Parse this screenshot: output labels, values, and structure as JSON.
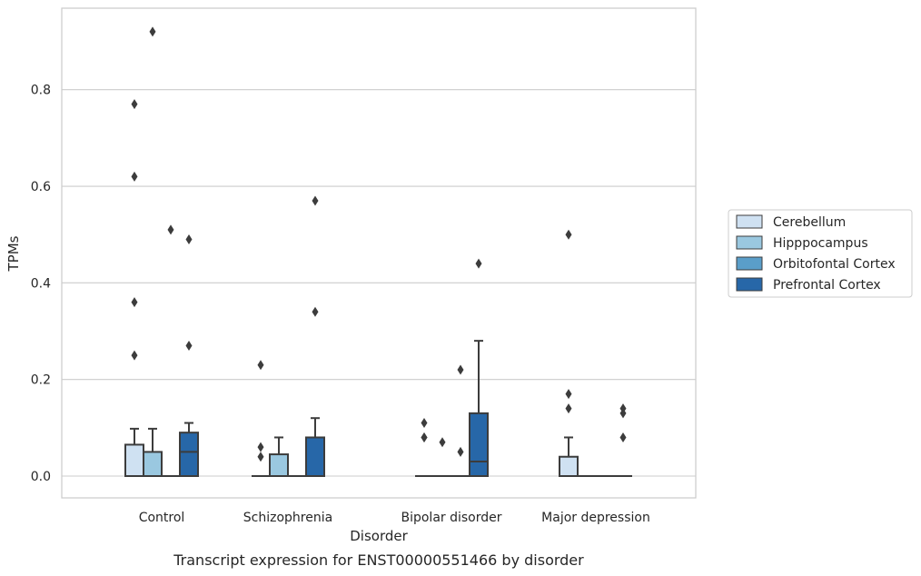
{
  "chart_data": {
    "type": "box",
    "xlabel": "Disorder",
    "ylabel": "TPMs",
    "caption": "Transcript expression for ENST00000551466 by disorder",
    "categories": [
      "Control",
      "Schizophrenia",
      "Bipolar disorder",
      "Major depression"
    ],
    "ylim": [
      -0.045,
      0.97
    ],
    "yticks": [
      0.0,
      0.2,
      0.4,
      0.6,
      0.8
    ],
    "ytick_labels": [
      "0.0",
      "0.2",
      "0.4",
      "0.6",
      "0.8"
    ],
    "grid": "horizontal",
    "legend_position": "right",
    "series": [
      {
        "name": "Cerebellum",
        "color": "#cfe1f2",
        "boxes": [
          {
            "q1": 0.0,
            "median": 0.0,
            "q3": 0.065,
            "whisker_low": 0.0,
            "whisker_high": 0.098,
            "outliers": [
              0.25,
              0.36,
              0.62,
              0.77
            ]
          },
          {
            "q1": 0.0,
            "median": 0.0,
            "q3": 0.0,
            "whisker_low": 0.0,
            "whisker_high": 0.0,
            "outliers": [
              0.04,
              0.06,
              0.23
            ]
          },
          {
            "q1": 0.0,
            "median": 0.0,
            "q3": 0.0,
            "whisker_low": 0.0,
            "whisker_high": 0.0,
            "outliers": [
              0.08,
              0.08,
              0.11
            ]
          },
          {
            "q1": 0.0,
            "median": 0.0,
            "q3": 0.04,
            "whisker_low": 0.0,
            "whisker_high": 0.08,
            "outliers": [
              0.14,
              0.17,
              0.5
            ]
          }
        ]
      },
      {
        "name": "Hipppocampus",
        "color": "#9ac8e0",
        "boxes": [
          {
            "q1": 0.0,
            "median": 0.0,
            "q3": 0.05,
            "whisker_low": 0.0,
            "whisker_high": 0.098,
            "outliers": [
              0.92
            ]
          },
          {
            "q1": 0.0,
            "median": 0.0,
            "q3": 0.045,
            "whisker_low": 0.0,
            "whisker_high": 0.08,
            "outliers": []
          },
          {
            "q1": 0.0,
            "median": 0.0,
            "q3": 0.0,
            "whisker_low": 0.0,
            "whisker_high": 0.0,
            "outliers": [
              0.07
            ]
          },
          {
            "q1": 0.0,
            "median": 0.0,
            "q3": 0.0,
            "whisker_low": 0.0,
            "whisker_high": 0.0,
            "outliers": []
          }
        ]
      },
      {
        "name": "Orbitofontal Cortex",
        "color": "#5a9ec9",
        "boxes": [
          {
            "q1": 0.0,
            "median": 0.0,
            "q3": 0.0,
            "whisker_low": 0.0,
            "whisker_high": 0.0,
            "outliers": [
              0.51
            ]
          },
          {
            "q1": 0.0,
            "median": 0.0,
            "q3": 0.0,
            "whisker_low": 0.0,
            "whisker_high": 0.0,
            "outliers": []
          },
          {
            "q1": 0.0,
            "median": 0.0,
            "q3": 0.0,
            "whisker_low": 0.0,
            "whisker_high": 0.0,
            "outliers": [
              0.05,
              0.22
            ]
          },
          {
            "q1": 0.0,
            "median": 0.0,
            "q3": 0.0,
            "whisker_low": 0.0,
            "whisker_high": 0.0,
            "outliers": []
          }
        ]
      },
      {
        "name": "Prefrontal Cortex",
        "color": "#2767a8",
        "boxes": [
          {
            "q1": 0.0,
            "median": 0.05,
            "q3": 0.09,
            "whisker_low": 0.0,
            "whisker_high": 0.11,
            "outliers": [
              0.27,
              0.49
            ]
          },
          {
            "q1": 0.0,
            "median": 0.0,
            "q3": 0.08,
            "whisker_low": 0.0,
            "whisker_high": 0.12,
            "outliers": [
              0.34,
              0.57
            ]
          },
          {
            "q1": 0.0,
            "median": 0.03,
            "q3": 0.13,
            "whisker_low": 0.0,
            "whisker_high": 0.28,
            "outliers": [
              0.44
            ]
          },
          {
            "q1": 0.0,
            "median": 0.0,
            "q3": 0.0,
            "whisker_low": 0.0,
            "whisker_high": 0.0,
            "outliers": [
              0.08,
              0.13,
              0.14
            ]
          }
        ]
      }
    ]
  }
}
